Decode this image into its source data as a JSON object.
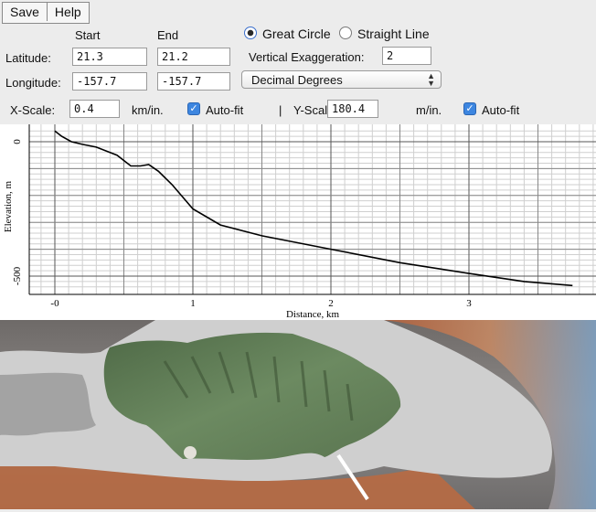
{
  "menu": {
    "save": "Save",
    "help": "Help"
  },
  "form": {
    "start_header": "Start",
    "end_header": "End",
    "latitude_label": "Latitude:",
    "longitude_label": "Longitude:",
    "lat_start": "21.3",
    "lat_end": "21.2",
    "lon_start": "-157.7",
    "lon_end": "-157.7",
    "great_circle": "Great Circle",
    "straight_line": "Straight Line",
    "great_circle_selected": true,
    "vert_exag_label": "Vertical Exaggeration:",
    "vert_exag_value": "2",
    "units_select": "Decimal Degrees",
    "xscale_label": "X-Scale:",
    "xscale_value": "0.4",
    "xscale_unit": "km/in.",
    "autofit_label": "Auto-fit",
    "separator": "|",
    "yscale_label": "Y-Scale:",
    "yscale_value": "180.4",
    "yscale_unit": "m/in.",
    "autofit2_label": "Auto-fit"
  },
  "chart_data": {
    "type": "line",
    "xlabel": "Distance, km",
    "ylabel": "Elevation, m",
    "xlim": [
      -0.2,
      3.9
    ],
    "ylim": [
      -550,
      40
    ],
    "xticks": [
      {
        "v": 0,
        "label": "-0"
      },
      {
        "v": 1,
        "label": "1"
      },
      {
        "v": 2,
        "label": "2"
      },
      {
        "v": 3,
        "label": "3"
      }
    ],
    "yticks": [
      {
        "v": 0,
        "label": "0"
      },
      {
        "v": -500,
        "label": "-500"
      }
    ],
    "grid": true,
    "series": [
      {
        "x": [
          0,
          0.05,
          0.12,
          0.2,
          0.3,
          0.45,
          0.55,
          0.62,
          0.68,
          0.75,
          0.85,
          1.0,
          1.2,
          1.5,
          2.0,
          2.5,
          3.0,
          3.4,
          3.75
        ],
        "y": [
          40,
          20,
          0,
          -10,
          -20,
          -50,
          -90,
          -90,
          -85,
          -110,
          -160,
          -250,
          -310,
          -350,
          -400,
          -450,
          -490,
          -520,
          -535
        ]
      }
    ],
    "line_color": "#000000"
  },
  "map": {
    "land_color": "#5f7a55",
    "shelf_color": "#cfcfcf",
    "deep_color": "#b5603a",
    "transect_color": "#ffffff"
  }
}
